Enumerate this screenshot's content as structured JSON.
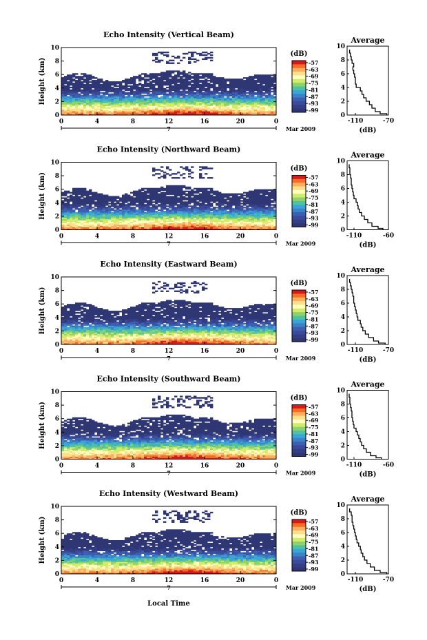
{
  "page": {
    "xlabel": "Local Time"
  },
  "colorbar": {
    "unit": "(dB)",
    "ticks": [
      "-57",
      "-63",
      "-69",
      "-75",
      "-81",
      "-87",
      "-93",
      "-99"
    ],
    "colors": [
      "#d7191c",
      "#f46d23",
      "#fdae61",
      "#fee08b",
      "#ffffbf",
      "#d0ec6a",
      "#8fd16a",
      "#4fc3a1",
      "#3aa6d8",
      "#3b82c6",
      "#3c5fb0",
      "#3b4a9a",
      "#353f86",
      "#2f3674"
    ]
  },
  "average_panel": {
    "title": "Average",
    "xlabel": "(dB)"
  },
  "chart_data": [
    {
      "type": "heatmap",
      "title": "Echo Intensity (Vertical Beam)",
      "ylabel": "Height (km)",
      "x_ticks": [
        "0",
        "4",
        "8",
        "12",
        "16",
        "20",
        "0"
      ],
      "y_ticks": [
        "0",
        "2",
        "4",
        "6",
        "8",
        "10"
      ],
      "xlim": [
        0,
        24
      ],
      "ylim": [
        0,
        10
      ],
      "date_day": "7",
      "date_label": "Mar 2009",
      "clim": [
        -99,
        -57
      ],
      "profile": {
        "xlim": [
          -120,
          -70
        ],
        "x_ticks": [
          "-110",
          "-70"
        ],
        "heights": [
          0.2,
          0.5,
          1,
          1.5,
          2,
          2.5,
          3,
          3.5,
          4,
          4.5,
          5,
          5.5,
          6,
          6.5,
          7,
          7.5,
          8,
          8.5,
          9,
          9.5
        ],
        "values": [
          -72,
          -80,
          -86,
          -90,
          -93,
          -97,
          -100,
          -102,
          -104,
          -109,
          -110,
          -110,
          -111,
          -112,
          -113,
          -112,
          -114,
          -115,
          -116,
          -117
        ]
      }
    },
    {
      "type": "heatmap",
      "title": "Echo Intensity (Northward Beam)",
      "ylabel": "Height (km)",
      "x_ticks": [
        "0",
        "4",
        "8",
        "12",
        "16",
        "20",
        "0"
      ],
      "y_ticks": [
        "0",
        "2",
        "4",
        "6",
        "8",
        "10"
      ],
      "xlim": [
        0,
        24
      ],
      "ylim": [
        0,
        10
      ],
      "date_day": "7",
      "date_label": "Mar 2009",
      "clim": [
        -99,
        -57
      ],
      "profile": {
        "xlim": [
          -120,
          -60
        ],
        "x_ticks": [
          "-110",
          "-60"
        ],
        "heights": [
          0.2,
          0.5,
          1,
          1.5,
          2,
          2.5,
          3,
          3.5,
          4,
          4.5,
          5,
          5.5,
          6,
          6.5,
          7,
          7.5,
          8,
          8.5,
          9,
          9.5
        ],
        "values": [
          -68,
          -75,
          -84,
          -90,
          -95,
          -99,
          -102,
          -104,
          -105,
          -107,
          -110,
          -111,
          -112,
          -113,
          -114,
          -114,
          -115,
          -116,
          -116,
          -117
        ]
      }
    },
    {
      "type": "heatmap",
      "title": "Echo Intensity (Eastward Beam)",
      "ylabel": "Height (km)",
      "x_ticks": [
        "0",
        "4",
        "8",
        "12",
        "16",
        "20",
        "0"
      ],
      "y_ticks": [
        "0",
        "2",
        "4",
        "6",
        "8",
        "10"
      ],
      "xlim": [
        0,
        24
      ],
      "ylim": [
        0,
        10
      ],
      "date_day": "7",
      "date_label": "Mar 2009",
      "clim": [
        -99,
        -57
      ],
      "profile": {
        "xlim": [
          -120,
          -70
        ],
        "x_ticks": [
          "-110",
          "-70"
        ],
        "heights": [
          0.2,
          0.5,
          1,
          1.5,
          2,
          2.5,
          3,
          3.5,
          4,
          4.5,
          5,
          5.5,
          6,
          6.5,
          7,
          7.5,
          8,
          8.5,
          9,
          9.5
        ],
        "values": [
          -74,
          -82,
          -88,
          -94,
          -98,
          -101,
          -103,
          -104,
          -107,
          -108,
          -109,
          -110,
          -111,
          -112,
          -112,
          -113,
          -114,
          -115,
          -116,
          -117
        ]
      }
    },
    {
      "type": "heatmap",
      "title": "Echo Intensity (Southward Beam)",
      "ylabel": "Height (km)",
      "x_ticks": [
        "0",
        "4",
        "8",
        "12",
        "16",
        "20",
        "0"
      ],
      "y_ticks": [
        "0",
        "2",
        "4",
        "6",
        "8",
        "10"
      ],
      "xlim": [
        0,
        24
      ],
      "ylim": [
        0,
        10
      ],
      "date_day": "7",
      "date_label": "Mar 2009",
      "clim": [
        -99,
        -57
      ],
      "profile": {
        "xlim": [
          -120,
          -60
        ],
        "x_ticks": [
          "-110",
          "-60"
        ],
        "heights": [
          0.2,
          0.5,
          1,
          1.5,
          2,
          2.5,
          3,
          3.5,
          4,
          4.5,
          5,
          5.5,
          6,
          6.5,
          7,
          7.5,
          8,
          8.5,
          9,
          9.5
        ],
        "values": [
          -70,
          -78,
          -86,
          -92,
          -96,
          -99,
          -101,
          -103,
          -105,
          -107,
          -110,
          -111,
          -112,
          -113,
          -113,
          -114,
          -115,
          -116,
          -116,
          -117
        ]
      }
    },
    {
      "type": "heatmap",
      "title": "Echo Intensity (Westward Beam)",
      "ylabel": "Height (km)",
      "x_ticks": [
        "0",
        "4",
        "8",
        "12",
        "16",
        "20",
        "0"
      ],
      "y_ticks": [
        "0",
        "2",
        "4",
        "6",
        "8",
        "10"
      ],
      "xlim": [
        0,
        24
      ],
      "ylim": [
        0,
        10
      ],
      "date_day": "7",
      "date_label": "Mar 2009",
      "clim": [
        -99,
        -57
      ],
      "profile": {
        "xlim": [
          -120,
          -70
        ],
        "x_ticks": [
          "-110",
          "-70"
        ],
        "heights": [
          0.2,
          0.5,
          1,
          1.5,
          2,
          2.5,
          3,
          3.5,
          4,
          4.5,
          5,
          5.5,
          6,
          6.5,
          7,
          7.5,
          8,
          8.5,
          9,
          9.5
        ],
        "values": [
          -72,
          -80,
          -87,
          -92,
          -96,
          -99,
          -101,
          -103,
          -104,
          -106,
          -108,
          -109,
          -110,
          -111,
          -112,
          -113,
          -114,
          -114,
          -115,
          -117
        ]
      }
    }
  ]
}
